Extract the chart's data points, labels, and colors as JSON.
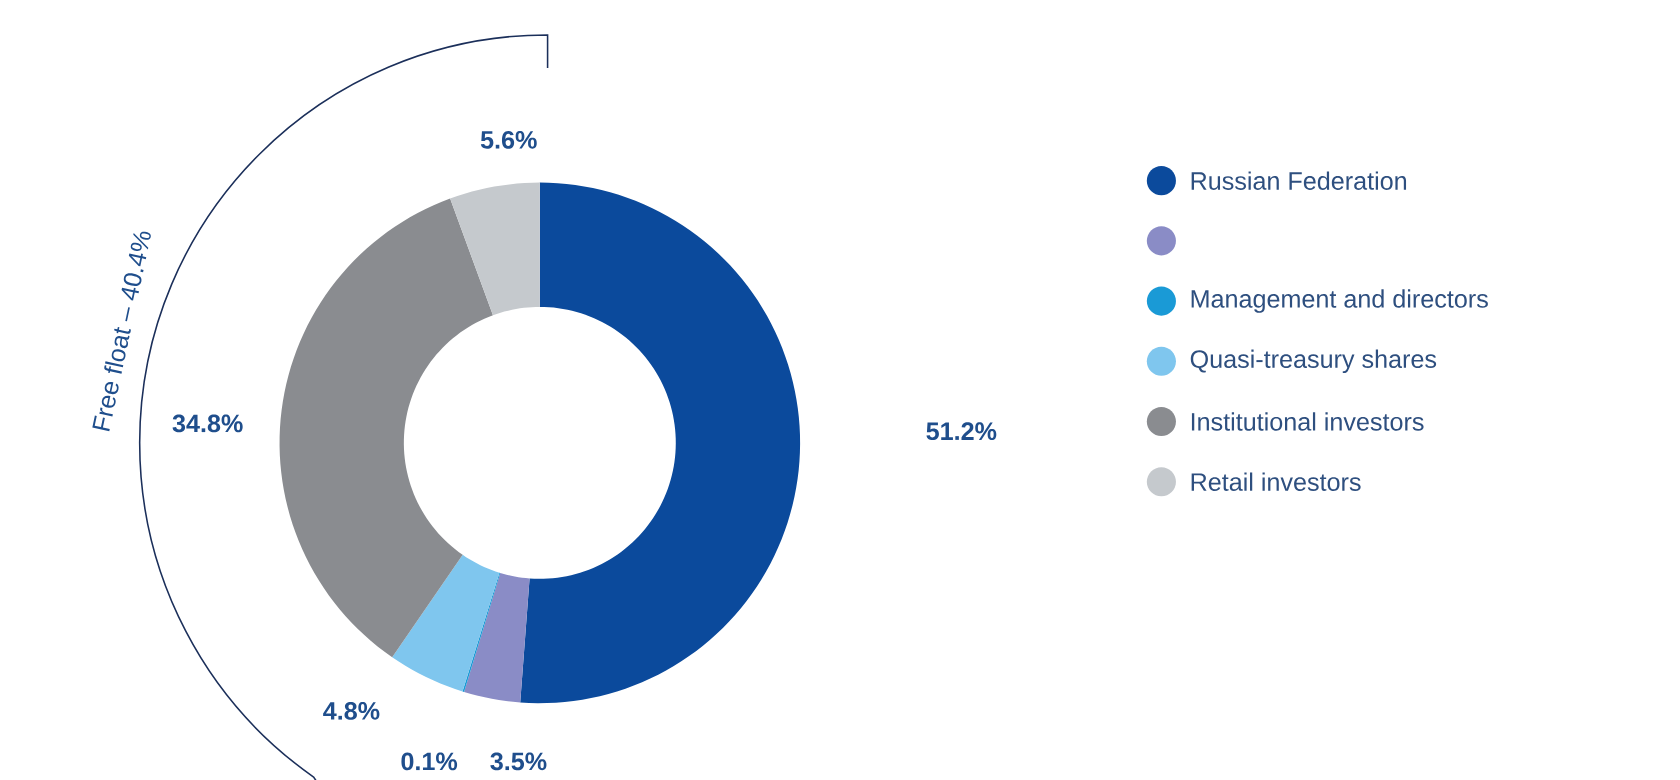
{
  "chart_data": {
    "type": "donut",
    "categories": [
      "Russian Federation",
      null,
      "Management and directors",
      "Quasi-treasury shares",
      "Institutional investors",
      "Retail investors"
    ],
    "values": [
      51.2,
      3.5,
      0.1,
      4.8,
      34.8,
      5.6
    ],
    "colors": [
      "#0b4a9c",
      "#8a8cc6",
      "#1a9ad6",
      "#7fc6ee",
      "#8a8c90",
      "#c5c9cd"
    ],
    "value_labels": [
      "51.2%",
      "3.5%",
      "0.1%",
      "4.8%",
      "34.8%",
      "5.6%"
    ],
    "legend": "right",
    "annotations": [
      "Free float – 40.4%"
    ]
  }
}
